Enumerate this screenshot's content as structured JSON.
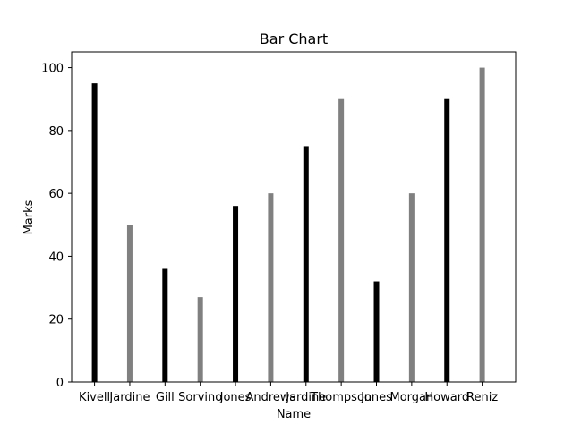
{
  "chart_data": {
    "type": "bar",
    "title": "Bar Chart",
    "xlabel": "Name",
    "ylabel": "Marks",
    "categories": [
      "Kivell",
      "Jardine",
      "Gill",
      "Sorvino",
      "Jones",
      "Andrews",
      "Jardine",
      "Thompson",
      "Jones",
      "Morgan",
      "Howard",
      "Reniz"
    ],
    "values": [
      95,
      50,
      36,
      27,
      56,
      60,
      75,
      90,
      32,
      60,
      90,
      100
    ],
    "bar_colors": [
      "#000000",
      "#808080",
      "#000000",
      "#808080",
      "#000000",
      "#808080",
      "#000000",
      "#808080",
      "#000000",
      "#808080",
      "#000000",
      "#808080"
    ],
    "yticks": [
      0,
      20,
      40,
      60,
      80,
      100
    ],
    "ylim": [
      0,
      105
    ],
    "grid": false,
    "legend": "none"
  }
}
